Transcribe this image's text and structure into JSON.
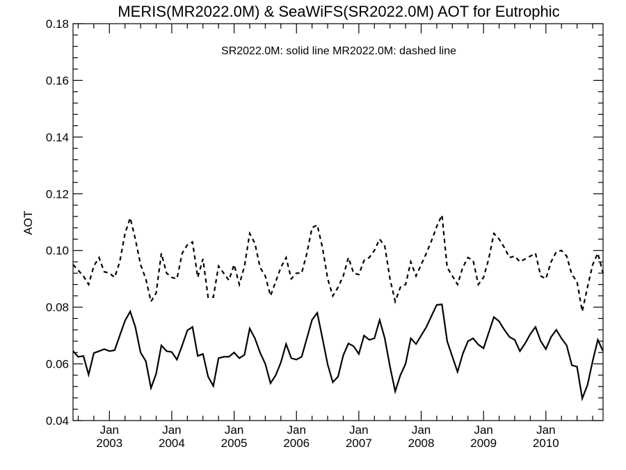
{
  "chart_data": {
    "type": "line",
    "title": "MERIS(MR2022.0M) & SeaWiFS(SR2022.0M)  AOT for Eutrophic",
    "legend_text": "SR2022.0M: solid line   MR2022.0M: dashed line",
    "ylabel": "AOT",
    "xlabel": "",
    "ylim": [
      0.04,
      0.18
    ],
    "xlim": [
      "2002-06",
      "2010-12"
    ],
    "yticks": [
      "0.04",
      "0.06",
      "0.08",
      "0.10",
      "0.12",
      "0.14",
      "0.16",
      "0.18"
    ],
    "xticks": [
      {
        "month": "Jan",
        "year": "2003",
        "date": "2003-01"
      },
      {
        "month": "Jan",
        "year": "2004",
        "date": "2004-01"
      },
      {
        "month": "Jan",
        "year": "2005",
        "date": "2005-01"
      },
      {
        "month": "Jan",
        "year": "2006",
        "date": "2006-01"
      },
      {
        "month": "Jan",
        "year": "2007",
        "date": "2007-01"
      },
      {
        "month": "Jan",
        "year": "2008",
        "date": "2008-01"
      },
      {
        "month": "Jan",
        "year": "2009",
        "date": "2009-01"
      },
      {
        "month": "Jan",
        "year": "2010",
        "date": "2010-01"
      }
    ],
    "x": [
      "2002-06",
      "2002-07",
      "2002-08",
      "2002-09",
      "2002-10",
      "2002-11",
      "2002-12",
      "2003-01",
      "2003-02",
      "2003-03",
      "2003-04",
      "2003-05",
      "2003-06",
      "2003-07",
      "2003-08",
      "2003-09",
      "2003-10",
      "2003-11",
      "2003-12",
      "2004-01",
      "2004-02",
      "2004-03",
      "2004-04",
      "2004-05",
      "2004-06",
      "2004-07",
      "2004-08",
      "2004-09",
      "2004-10",
      "2004-11",
      "2004-12",
      "2005-01",
      "2005-02",
      "2005-03",
      "2005-04",
      "2005-05",
      "2005-06",
      "2005-07",
      "2005-08",
      "2005-09",
      "2005-10",
      "2005-11",
      "2005-12",
      "2006-01",
      "2006-02",
      "2006-03",
      "2006-04",
      "2006-05",
      "2006-06",
      "2006-07",
      "2006-08",
      "2006-09",
      "2006-10",
      "2006-11",
      "2006-12",
      "2007-01",
      "2007-02",
      "2007-03",
      "2007-04",
      "2007-05",
      "2007-06",
      "2007-07",
      "2007-08",
      "2007-09",
      "2007-10",
      "2007-11",
      "2007-12",
      "2008-01",
      "2008-02",
      "2008-03",
      "2008-04",
      "2008-05",
      "2008-06",
      "2008-07",
      "2008-08",
      "2008-09",
      "2008-10",
      "2008-11",
      "2008-12",
      "2009-01",
      "2009-02",
      "2009-03",
      "2009-04",
      "2009-05",
      "2009-06",
      "2009-07",
      "2009-08",
      "2009-09",
      "2009-10",
      "2009-11",
      "2009-12",
      "2010-01",
      "2010-02",
      "2010-03",
      "2010-04",
      "2010-05",
      "2010-06",
      "2010-07",
      "2010-08",
      "2010-09",
      "2010-10",
      "2010-11",
      "2010-12"
    ],
    "series": [
      {
        "style": "solid",
        "values": [
          0.0645,
          0.0625,
          0.0628,
          0.0562,
          0.0638,
          0.0645,
          0.0652,
          0.0645,
          0.0648,
          0.07,
          0.0752,
          0.0785,
          0.073,
          0.064,
          0.061,
          0.0515,
          0.0565,
          0.0665,
          0.0645,
          0.0642,
          0.0615,
          0.0665,
          0.0718,
          0.073,
          0.0628,
          0.0635,
          0.0555,
          0.0522,
          0.062,
          0.0625,
          0.0625,
          0.064,
          0.062,
          0.0632,
          0.0725,
          0.069,
          0.064,
          0.06,
          0.0532,
          0.056,
          0.0605,
          0.067,
          0.062,
          0.0615,
          0.0625,
          0.069,
          0.0755,
          0.078,
          0.069,
          0.0598,
          0.0535,
          0.0555,
          0.063,
          0.0672,
          0.0662,
          0.0635,
          0.07,
          0.0685,
          0.069,
          0.0755,
          0.069,
          0.059,
          0.0503,
          0.056,
          0.06,
          0.069,
          0.067,
          0.07,
          0.073,
          0.077,
          0.0808,
          0.081,
          0.068,
          0.0625,
          0.0572,
          0.0635,
          0.068,
          0.069,
          0.0668,
          0.0655,
          0.071,
          0.0765,
          0.075,
          0.072,
          0.0695,
          0.0685,
          0.0645,
          0.0672,
          0.0705,
          0.073,
          0.068,
          0.0652,
          0.0695,
          0.072,
          0.069,
          0.0665,
          0.0595,
          0.059,
          0.0478,
          0.0525,
          0.061,
          0.0685,
          0.0645
        ]
      },
      {
        "style": "dashed",
        "values": [
          0.095,
          0.093,
          0.091,
          0.088,
          0.0945,
          0.0975,
          0.0925,
          0.092,
          0.0905,
          0.096,
          0.106,
          0.1115,
          0.104,
          0.095,
          0.09,
          0.082,
          0.085,
          0.099,
          0.092,
          0.0905,
          0.09,
          0.099,
          0.102,
          0.103,
          0.0905,
          0.097,
          0.0835,
          0.0835,
          0.0945,
          0.092,
          0.0895,
          0.095,
          0.088,
          0.0945,
          0.106,
          0.1025,
          0.094,
          0.091,
          0.084,
          0.089,
          0.094,
          0.0975,
          0.09,
          0.092,
          0.092,
          0.099,
          0.108,
          0.109,
          0.101,
          0.09,
          0.084,
          0.087,
          0.091,
          0.0975,
          0.092,
          0.0915,
          0.0965,
          0.0975,
          0.1,
          0.104,
          0.1015,
          0.09,
          0.082,
          0.087,
          0.088,
          0.096,
          0.091,
          0.095,
          0.099,
          0.1035,
          0.1085,
          0.1125,
          0.094,
          0.091,
          0.088,
          0.094,
          0.0975,
          0.0965,
          0.088,
          0.0905,
          0.097,
          0.106,
          0.104,
          0.101,
          0.0975,
          0.098,
          0.096,
          0.097,
          0.098,
          0.099,
          0.091,
          0.09,
          0.096,
          0.0995,
          0.1,
          0.098,
          0.0915,
          0.089,
          0.0785,
          0.087,
          0.095,
          0.099,
          0.092
        ]
      }
    ],
    "grid": false,
    "legend_position": "top-center"
  }
}
